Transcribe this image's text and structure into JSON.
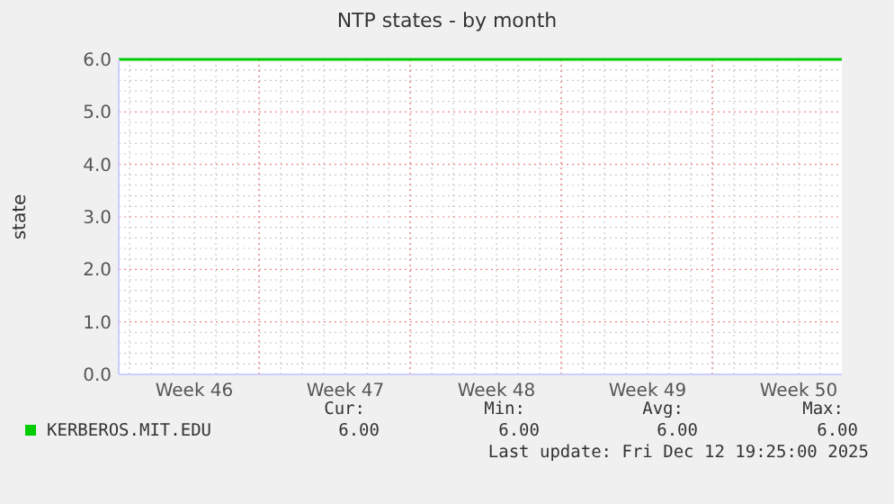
{
  "chart_data": {
    "type": "line",
    "title": "NTP states - by month",
    "ylabel": "state",
    "x": [
      "2025-11-10T12:00",
      "2025-12-14T00:00"
    ],
    "xlim": [
      "2025-11-10T12:00",
      "2025-12-14T00:00"
    ],
    "xticks": [
      {
        "value": "2025-11-14T00:00",
        "label": "Week 46"
      },
      {
        "value": "2025-11-17T00:00",
        "label": null
      },
      {
        "value": "2025-11-21T00:00",
        "label": "Week 47"
      },
      {
        "value": "2025-11-24T00:00",
        "label": null
      },
      {
        "value": "2025-11-28T00:00",
        "label": "Week 48"
      },
      {
        "value": "2025-12-01T00:00",
        "label": null
      },
      {
        "value": "2025-12-05T00:00",
        "label": "Week 49"
      },
      {
        "value": "2025-12-08T00:00",
        "label": null
      },
      {
        "value": "2025-12-12T00:00",
        "label": "Week 50"
      }
    ],
    "ylim": [
      0,
      6
    ],
    "yticks": [
      {
        "value": 0,
        "label": "0.0"
      },
      {
        "value": 1,
        "label": "1.0"
      },
      {
        "value": 2,
        "label": "2.0"
      },
      {
        "value": 3,
        "label": "3.0"
      },
      {
        "value": 4,
        "label": "4.0"
      },
      {
        "value": 5,
        "label": "5.0"
      },
      {
        "value": 6,
        "label": "6.0"
      }
    ],
    "grid": true,
    "legend": "bottom",
    "series": [
      {
        "name": "KERBEROS.MIT.EDU",
        "color": "#00cc00",
        "values": [
          6,
          6
        ]
      }
    ],
    "annotations": [
      "Cur:",
      "Min:",
      "Avg:",
      "Max:",
      "6.00",
      "6.00",
      "6.00",
      "6.00",
      "Last update: Fri Dec 12 19:25:00 2025"
    ]
  }
}
